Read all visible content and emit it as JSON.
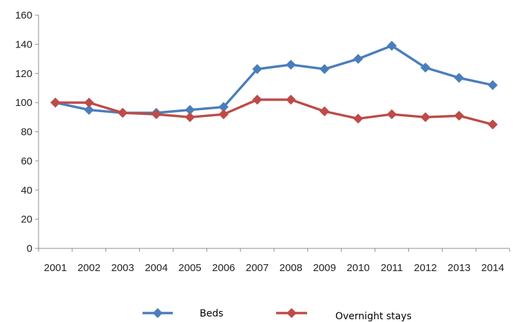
{
  "chart_data": {
    "type": "line",
    "title": "",
    "xlabel": "",
    "ylabel": "",
    "x": [
      "2001",
      "2002",
      "2003",
      "2004",
      "2005",
      "2006",
      "2007",
      "2008",
      "2009",
      "2010",
      "2011",
      "2012",
      "2013",
      "2014"
    ],
    "ylim": [
      0,
      160
    ],
    "yticks": [
      0,
      20,
      40,
      60,
      80,
      100,
      120,
      140,
      160
    ],
    "grid": false,
    "legend_position": "bottom",
    "series": [
      {
        "name": "Beds",
        "color": "#4a7ebb",
        "marker": "diamond",
        "values": [
          100,
          95,
          93,
          93,
          95,
          97,
          123,
          126,
          123,
          130,
          139,
          124,
          117,
          112
        ]
      },
      {
        "name": "Overnight stays",
        "color": "#be4b48",
        "marker": "diamond",
        "values": [
          100,
          100,
          93,
          92,
          90,
          92,
          102,
          102,
          94,
          89,
          92,
          90,
          91,
          85
        ]
      }
    ]
  }
}
